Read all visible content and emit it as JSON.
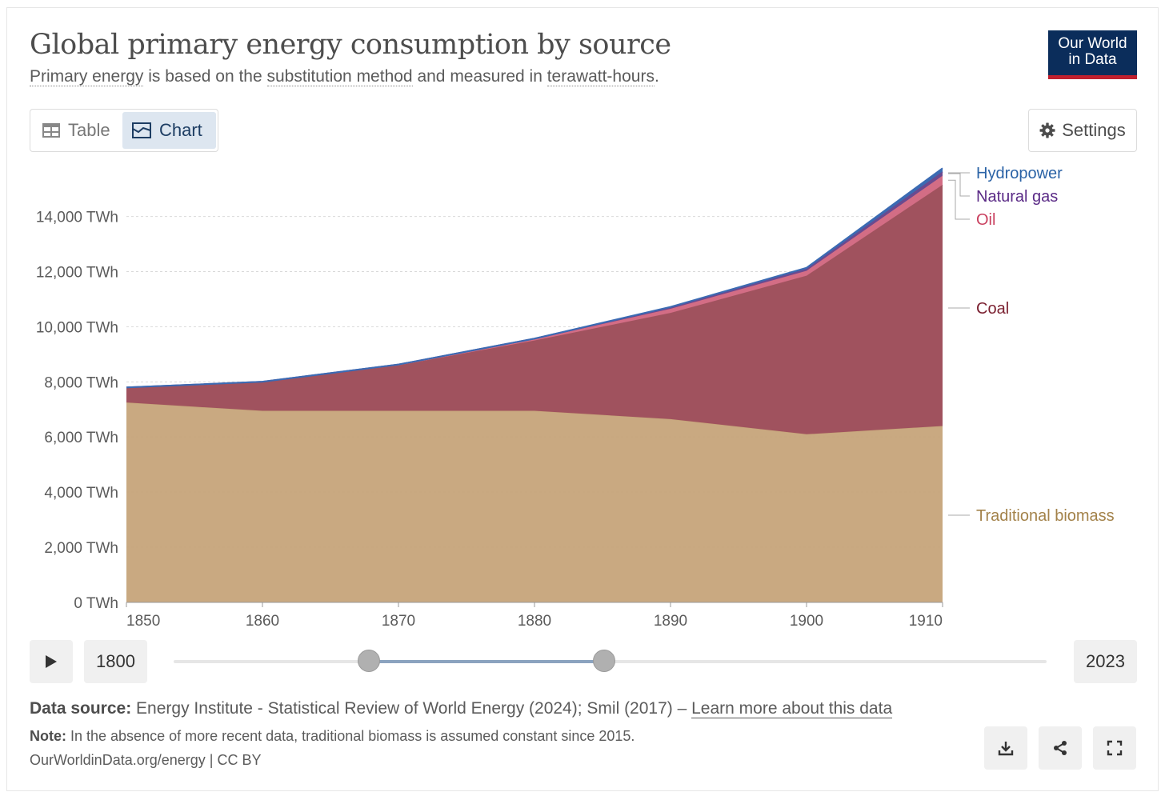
{
  "header": {
    "title": "Global primary energy consumption by source",
    "subtitle_parts": {
      "link1": "Primary energy",
      "text1": " is based on the ",
      "link2": "substitution method",
      "text2": " and measured in ",
      "link3": "terawatt-hours",
      "text3": "."
    },
    "logo_line1": "Our World",
    "logo_line2": "in Data"
  },
  "toolbar": {
    "table_label": "Table",
    "chart_label": "Chart",
    "settings_label": "Settings"
  },
  "timeline": {
    "start_year": "1800",
    "end_year": "2023",
    "range_start_fraction": 0.224,
    "range_end_fraction": 0.493
  },
  "footer": {
    "source_label": "Data source:",
    "source_text": " Energy Institute - Statistical Review of World Energy (2024); Smil (2017) – ",
    "source_link": "Learn more about this data",
    "note_label": "Note:",
    "note_text": " In the absence of more recent data, traditional biomass is assumed constant since 2015.",
    "license": "OurWorldinData.org/energy | CC BY"
  },
  "colors": {
    "traditional_biomass": "#c6a47a",
    "coal": "#a0525e",
    "oil": "#d36d85",
    "natural_gas": "#6a4a8f",
    "hydropower": "#3b6bb3",
    "label_biomass": "#a3824a",
    "label_coal": "#7a1f2f",
    "label_oil": "#c9405f",
    "label_gas": "#5a2a86",
    "label_hydro": "#2b63a6"
  },
  "chart_data": {
    "type": "area",
    "stacked": true,
    "title": "Global primary energy consumption by source",
    "ylabel": "",
    "xlabel": "",
    "unit": "TWh",
    "x": [
      1850,
      1860,
      1870,
      1880,
      1890,
      1900,
      1910
    ],
    "ylim": [
      0,
      15700
    ],
    "xlim": [
      1850,
      1910
    ],
    "y_ticks": [
      "0 TWh",
      "2,000 TWh",
      "4,000 TWh",
      "6,000 TWh",
      "8,000 TWh",
      "10,000 TWh",
      "12,000 TWh",
      "14,000 TWh"
    ],
    "y_tick_values": [
      0,
      2000,
      4000,
      6000,
      8000,
      10000,
      12000,
      14000
    ],
    "x_ticks": [
      "1850",
      "1860",
      "1870",
      "1880",
      "1890",
      "1900",
      "1910"
    ],
    "x_tick_values": [
      1850,
      1860,
      1870,
      1880,
      1890,
      1900,
      1910
    ],
    "series": [
      {
        "name": "Traditional biomass",
        "values": [
          7250,
          6950,
          6950,
          6950,
          6650,
          6100,
          6400
        ]
      },
      {
        "name": "Coal",
        "values": [
          550,
          1050,
          1650,
          2550,
          3850,
          5750,
          8750
        ]
      },
      {
        "name": "Oil",
        "values": [
          0,
          5,
          20,
          50,
          150,
          180,
          330
        ]
      },
      {
        "name": "Natural gas",
        "values": [
          0,
          0,
          10,
          20,
          50,
          70,
          150
        ]
      },
      {
        "name": "Hydropower",
        "values": [
          0,
          0,
          0,
          0,
          20,
          40,
          120
        ]
      }
    ]
  }
}
